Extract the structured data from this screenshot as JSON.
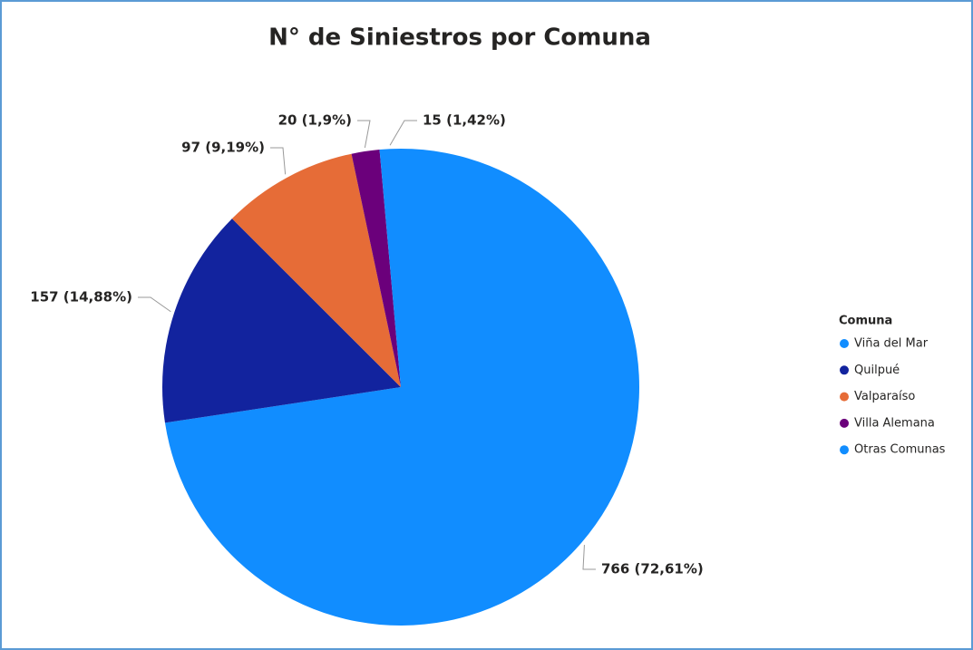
{
  "chart_data": {
    "type": "pie",
    "title": "N° de Siniestros por Comuna",
    "legend_title": "Comuna",
    "categories": [
      "Viña del Mar",
      "Quilpué",
      "Valparaíso",
      "Villa Alemana",
      "Otras Comunas"
    ],
    "values": [
      766,
      157,
      97,
      20,
      15
    ],
    "value_labels": [
      "766 (72,61%)",
      "157 (14,88%)",
      "97 (9,19%)",
      "20 (1,9%)",
      "15 (1,42%)"
    ],
    "colors": [
      "#118DFF",
      "#12239E",
      "#E66C37",
      "#6B007B",
      "#118DFF"
    ],
    "legend": "right"
  }
}
